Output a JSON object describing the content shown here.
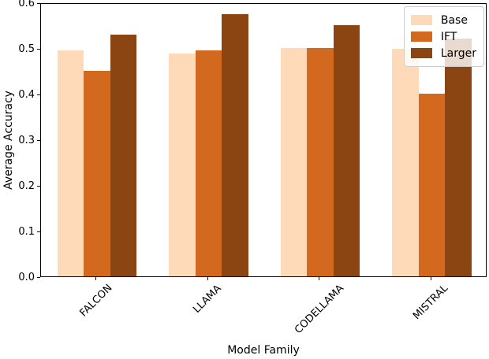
{
  "chart_data": {
    "type": "bar",
    "title": "",
    "xlabel": "Model Family",
    "ylabel": "Average Accuracy",
    "categories": [
      "FALCON",
      "LLAMA",
      "CODELLAMA",
      "MISTRAL"
    ],
    "series": [
      {
        "name": "Base",
        "color": "#FFDAB9",
        "values": [
          0.495,
          0.4875,
          0.5,
          0.4975
        ]
      },
      {
        "name": "IFT",
        "color": "#D2691E",
        "values": [
          0.45,
          0.495,
          0.5,
          0.4
        ]
      },
      {
        "name": "Larger",
        "color": "#8B4513",
        "values": [
          0.53,
          0.575,
          0.55,
          0.52
        ]
      }
    ],
    "ylim": [
      0.0,
      0.6
    ],
    "yticks": [
      0.0,
      0.1,
      0.2,
      0.3,
      0.4,
      0.5,
      0.6
    ],
    "ytick_labels": [
      "0.0",
      "0.1",
      "0.2",
      "0.3",
      "0.4",
      "0.5",
      "0.6"
    ],
    "x_tick_rotation": 45,
    "grid": false,
    "legend": {
      "position": "upper right",
      "labels": [
        "Base",
        "IFT",
        "Larger"
      ]
    }
  },
  "style": {
    "background": "#ffffff",
    "spine_color": "#000000",
    "legend_border": "#cccccc"
  }
}
